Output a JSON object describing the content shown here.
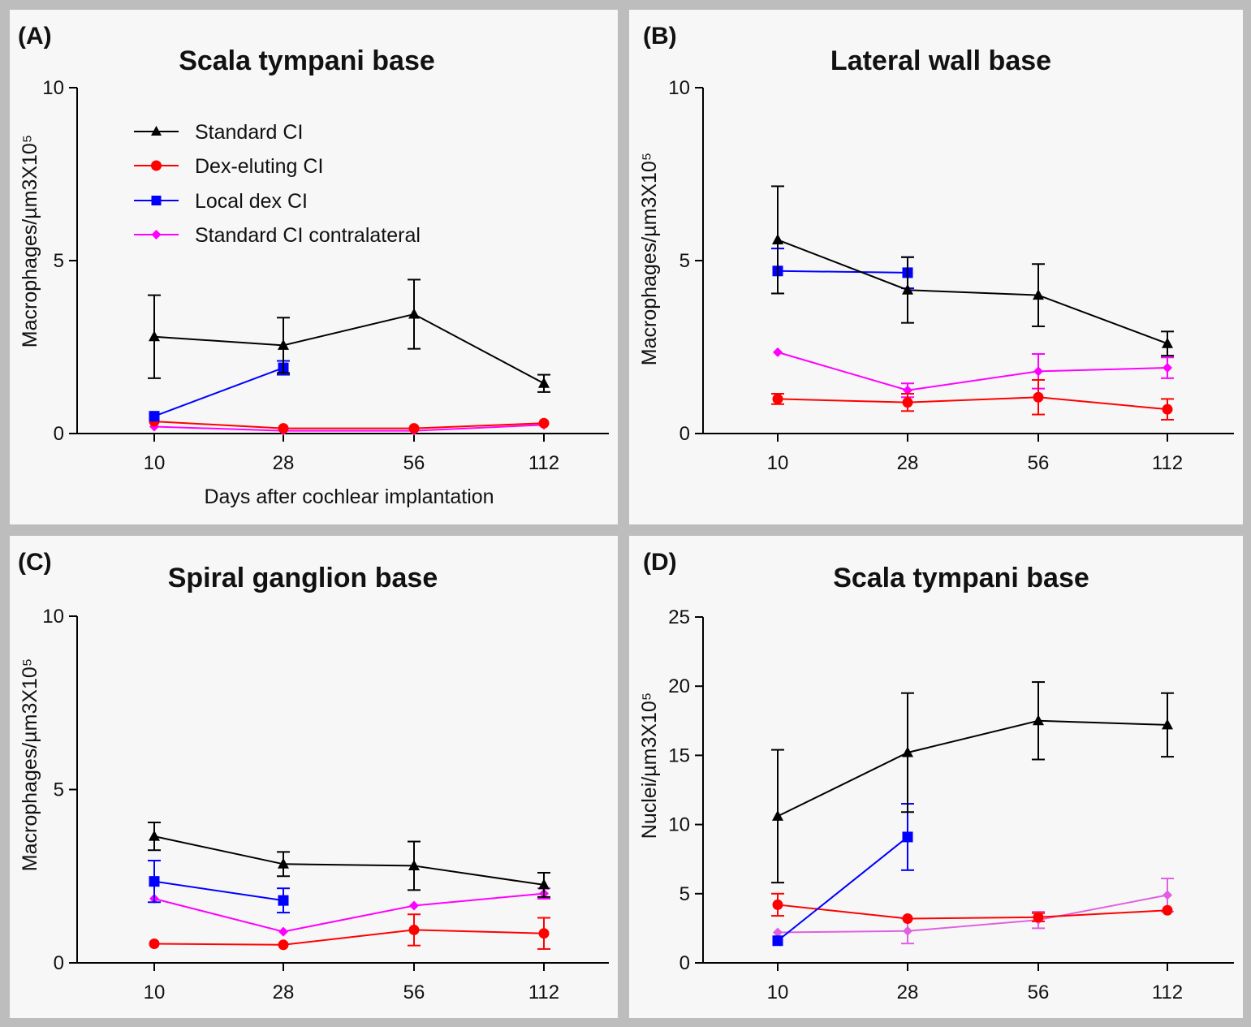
{
  "colors": {
    "standard": "#000000",
    "dex_eluting": "#ff0000",
    "local_dex": "#0000ff",
    "contralateral": "#ff00ff",
    "contralateral_light": "#e060e0"
  },
  "legend": {
    "standard": "Standard CI",
    "dex_eluting": "Dex-eluting CI",
    "local_dex": "Local dex CI",
    "contralateral": "Standard CI contralateral"
  },
  "chart_data": [
    {
      "id": "A",
      "panel_label": "(A)",
      "type": "line",
      "title": "Scala tympani base",
      "xlabel": "Days after cochlear implantation",
      "ylabel": "Macrophages/µm3X10⁵",
      "categories": [
        "10",
        "28",
        "56",
        "112"
      ],
      "ylim": [
        0,
        10
      ],
      "yticks": [
        "0",
        "5",
        "10"
      ],
      "series": [
        {
          "name": "Standard CI",
          "key": "standard",
          "values": [
            2.8,
            2.55,
            3.45,
            1.45
          ],
          "errors": [
            1.2,
            0.8,
            1.0,
            0.25
          ]
        },
        {
          "name": "Dex-eluting CI",
          "key": "dex_eluting",
          "values": [
            0.35,
            0.15,
            0.15,
            0.3
          ],
          "errors": [
            0,
            0,
            0,
            0
          ]
        },
        {
          "name": "Local dex CI",
          "key": "local_dex",
          "values": [
            0.5,
            1.9,
            null,
            null
          ],
          "errors": [
            0,
            0.2,
            0,
            0
          ]
        },
        {
          "name": "Standard CI contralateral",
          "key": "contralateral",
          "values": [
            0.2,
            0.08,
            0.08,
            0.25
          ],
          "errors": [
            0,
            0,
            0,
            0
          ]
        }
      ]
    },
    {
      "id": "B",
      "panel_label": "(B)",
      "type": "line",
      "title": "Lateral wall base",
      "xlabel": "",
      "ylabel": "Macrophages/µm3X10⁵",
      "categories": [
        "10",
        "28",
        "56",
        "112"
      ],
      "ylim": [
        0,
        10
      ],
      "yticks": [
        "0",
        "5",
        "10"
      ],
      "series": [
        {
          "name": "Standard CI",
          "key": "standard",
          "values": [
            5.6,
            4.15,
            4.0,
            2.6
          ],
          "errors": [
            1.55,
            0.95,
            0.9,
            0.35
          ]
        },
        {
          "name": "Dex-eluting CI",
          "key": "dex_eluting",
          "values": [
            1.0,
            0.9,
            1.05,
            0.7
          ],
          "errors": [
            0.15,
            0.25,
            0.5,
            0.3
          ]
        },
        {
          "name": "Local dex CI",
          "key": "local_dex",
          "values": [
            4.7,
            4.65,
            null,
            null
          ],
          "errors": [
            0.65,
            0.45,
            0,
            0
          ]
        },
        {
          "name": "Standard CI contralateral",
          "key": "contralateral",
          "values": [
            2.35,
            1.25,
            1.8,
            1.9
          ],
          "errors": [
            0,
            0.2,
            0.5,
            0.3
          ]
        }
      ]
    },
    {
      "id": "C",
      "panel_label": "(C)",
      "type": "line",
      "title": "Spiral ganglion base",
      "xlabel": "",
      "ylabel": "Macrophages/µm3X10⁵",
      "categories": [
        "10",
        "28",
        "56",
        "112"
      ],
      "ylim": [
        0,
        10
      ],
      "yticks": [
        "0",
        "5",
        "10"
      ],
      "series": [
        {
          "name": "Standard CI",
          "key": "standard",
          "values": [
            3.65,
            2.85,
            2.8,
            2.25
          ],
          "errors": [
            0.4,
            0.35,
            0.7,
            0.35
          ]
        },
        {
          "name": "Dex-eluting CI",
          "key": "dex_eluting",
          "values": [
            0.55,
            0.52,
            0.95,
            0.85
          ],
          "errors": [
            0,
            0,
            0.45,
            0.45
          ]
        },
        {
          "name": "Local dex CI",
          "key": "local_dex",
          "values": [
            2.35,
            1.8,
            null,
            null
          ],
          "errors": [
            0.6,
            0.35,
            0,
            0
          ]
        },
        {
          "name": "Standard CI contralateral",
          "key": "contralateral",
          "values": [
            1.85,
            0.9,
            1.65,
            2.0
          ],
          "errors": [
            0,
            0,
            0,
            0.15
          ]
        }
      ]
    },
    {
      "id": "D",
      "panel_label": "(D)",
      "type": "line",
      "title": "Scala tympani base",
      "xlabel": "",
      "ylabel": "Nuclei/µm3X10⁵",
      "categories": [
        "10",
        "28",
        "56",
        "112"
      ],
      "ylim": [
        0,
        25
      ],
      "yticks": [
        "0",
        "5",
        "10",
        "15",
        "20",
        "25"
      ],
      "series": [
        {
          "name": "Standard CI",
          "key": "standard",
          "values": [
            10.6,
            15.2,
            17.5,
            17.2
          ],
          "errors": [
            4.8,
            4.3,
            2.8,
            2.3
          ]
        },
        {
          "name": "Dex-eluting CI",
          "key": "dex_eluting",
          "values": [
            4.2,
            3.2,
            3.3,
            3.8
          ],
          "errors": [
            0.8,
            0,
            0.3,
            0
          ]
        },
        {
          "name": "Local dex CI",
          "key": "local_dex",
          "values": [
            1.6,
            9.1,
            null,
            null
          ],
          "errors": [
            0,
            2.4,
            0,
            0
          ]
        },
        {
          "name": "Standard CI contralateral",
          "key": "contralateral_light",
          "values": [
            2.2,
            2.3,
            3.1,
            4.9
          ],
          "errors": [
            0,
            0.9,
            0.6,
            1.2
          ]
        }
      ]
    }
  ]
}
